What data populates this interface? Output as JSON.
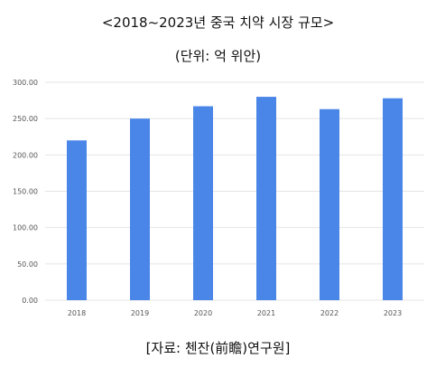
{
  "header": {
    "title": "<2018~2023년 중국 치약 시장 규모>",
    "subtitle": "(단위: 억 위안)"
  },
  "footer": {
    "source": "[자료: 첸잔(前瞻)연구원]"
  },
  "chart_data": {
    "type": "bar",
    "categories": [
      "2018",
      "2019",
      "2020",
      "2021",
      "2022",
      "2023"
    ],
    "series": [
      {
        "values": [
          220,
          250,
          267,
          280,
          263,
          278
        ]
      }
    ],
    "title": "<2018~2023년 중국 치약 시장 규모>",
    "subtitle": "(단위: 억 위안)",
    "xlabel": "",
    "ylabel": "",
    "ylim": [
      0,
      300
    ],
    "yticks": [
      "0.00",
      "50.00",
      "100.00",
      "150.00",
      "200.00",
      "250.00",
      "300.00"
    ],
    "grid": true,
    "legend": "none",
    "colors": {
      "bar": "#4a86e8",
      "grid": "#e4e4e4",
      "tick_text": "#555555"
    }
  }
}
